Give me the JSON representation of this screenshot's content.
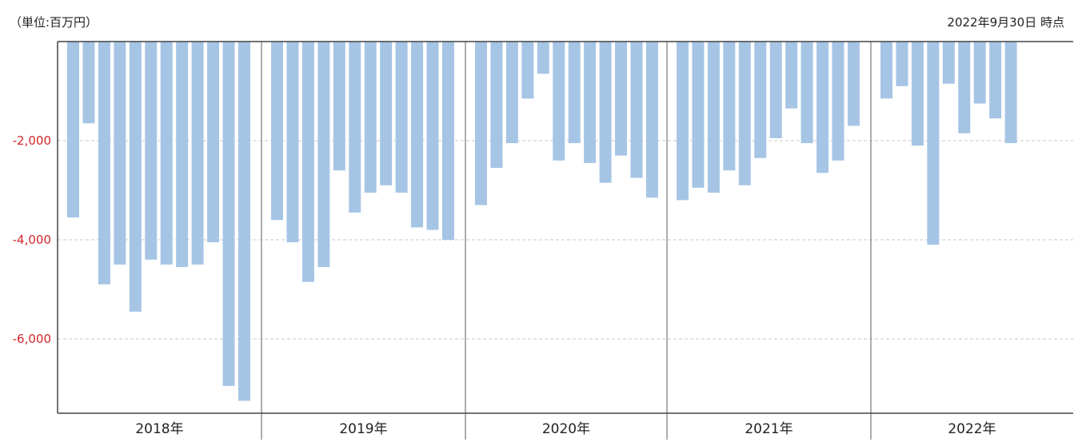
{
  "header": {
    "unit_label": "（単位:百万円）",
    "as_of_label": "2022年9月30日 時点"
  },
  "colors": {
    "bar": "#a6c5e5",
    "tick_label": "#d0262b",
    "grid": "#c8c8c8",
    "axis": "#444444"
  },
  "chart_data": {
    "type": "bar",
    "title": "",
    "xlabel": "",
    "ylabel": "",
    "ylim": [
      -7500,
      0
    ],
    "yticks": [
      {
        "value": -2000,
        "label": "-2,000"
      },
      {
        "value": -4000,
        "label": "-4,000"
      },
      {
        "value": -6000,
        "label": "-6,000"
      }
    ],
    "grid": true,
    "legend": "none",
    "groups": [
      {
        "label": "2018年",
        "values": [
          -3550,
          -1650,
          -4900,
          -4500,
          -5450,
          -4400,
          -4500,
          -4550,
          -4500,
          -4050,
          -6950,
          -7250
        ]
      },
      {
        "label": "2019年",
        "values": [
          -3600,
          -4050,
          -4850,
          -4550,
          -2600,
          -3450,
          -3050,
          -2900,
          -3050,
          -3750,
          -3800,
          -4000
        ]
      },
      {
        "label": "2020年",
        "values": [
          -3300,
          -2550,
          -2050,
          -1150,
          -650,
          -2400,
          -2050,
          -2450,
          -2850,
          -2300,
          -2750,
          -3150
        ]
      },
      {
        "label": "2021年",
        "values": [
          -3200,
          -2950,
          -3050,
          -2600,
          -2900,
          -2350,
          -1950,
          -1350,
          -2050,
          -2650,
          -2400,
          -1700
        ]
      },
      {
        "label": "2022年",
        "values": [
          -1150,
          -900,
          -2100,
          -4100,
          -850,
          -1850,
          -1250,
          -1550,
          -2050
        ]
      }
    ]
  }
}
